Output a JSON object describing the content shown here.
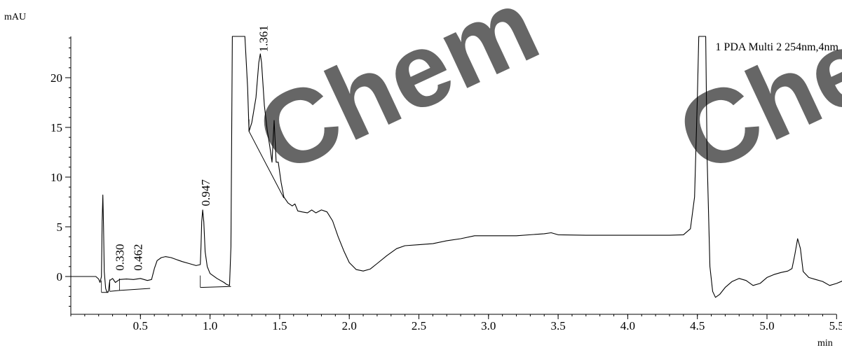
{
  "chart_data": {
    "type": "line",
    "ylabel": "mAU",
    "xlabel": "min",
    "trace_label": "1 PDA Multi 2 254nm,4nm",
    "xlim": [
      0.0,
      5.6
    ],
    "ylim": [
      -3.6,
      24.2
    ],
    "x_ticks": [
      0.5,
      1.0,
      1.5,
      2.0,
      2.5,
      3.0,
      3.5,
      4.0,
      4.5,
      5.0,
      5.5
    ],
    "x_tick_labels": [
      "0.5",
      "1.0",
      "1.5",
      "2.0",
      "2.5",
      "3.0",
      "3.5",
      "4.0",
      "4.5",
      "5.0",
      "5.5"
    ],
    "x_minor_step": 0.1,
    "y_ticks": [
      0,
      5,
      10,
      15,
      20
    ],
    "y_tick_labels": [
      "0",
      "5",
      "10",
      "15",
      "20"
    ],
    "y_minor_step": 1,
    "grid": false,
    "peak_labels": [
      {
        "text": "0.330",
        "x": 0.33,
        "y": 0.3
      },
      {
        "text": "0.462",
        "x": 0.462,
        "y": 0.3
      },
      {
        "text": "0.947",
        "x": 0.947,
        "y": 6.8
      },
      {
        "text": "1.361",
        "x": 1.361,
        "y": 22.3
      }
    ],
    "baselines": [
      [
        [
          0.22,
          -1.6
        ],
        [
          0.27,
          -1.6
        ]
      ],
      [
        [
          0.28,
          -1.5
        ],
        [
          0.35,
          -1.4
        ]
      ],
      [
        [
          0.35,
          -1.4
        ],
        [
          0.57,
          -1.2
        ]
      ],
      [
        [
          0.93,
          -1.1
        ],
        [
          1.15,
          -1.0
        ]
      ],
      [
        [
          1.28,
          14.6
        ],
        [
          1.53,
          7.9
        ]
      ]
    ],
    "series": [
      {
        "points": [
          [
            0.0,
            0.0
          ],
          [
            0.1,
            0.0
          ],
          [
            0.18,
            0.0
          ],
          [
            0.2,
            -0.25
          ],
          [
            0.21,
            -0.6
          ],
          [
            0.22,
            0.0
          ],
          [
            0.225,
            5.5
          ],
          [
            0.23,
            8.2
          ],
          [
            0.235,
            5.0
          ],
          [
            0.24,
            0.5
          ],
          [
            0.25,
            -1.2
          ],
          [
            0.26,
            -1.6
          ],
          [
            0.27,
            -1.5
          ],
          [
            0.28,
            -0.4
          ],
          [
            0.3,
            -0.2
          ],
          [
            0.32,
            -0.6
          ],
          [
            0.35,
            -0.3
          ],
          [
            0.4,
            -0.25
          ],
          [
            0.45,
            -0.3
          ],
          [
            0.5,
            -0.2
          ],
          [
            0.55,
            -0.4
          ],
          [
            0.58,
            -0.3
          ],
          [
            0.6,
            0.8
          ],
          [
            0.62,
            1.6
          ],
          [
            0.65,
            1.9
          ],
          [
            0.68,
            2.0
          ],
          [
            0.72,
            1.9
          ],
          [
            0.76,
            1.7
          ],
          [
            0.8,
            1.5
          ],
          [
            0.85,
            1.3
          ],
          [
            0.9,
            1.1
          ],
          [
            0.93,
            1.2
          ],
          [
            0.935,
            3.0
          ],
          [
            0.94,
            5.5
          ],
          [
            0.947,
            6.7
          ],
          [
            0.955,
            5.5
          ],
          [
            0.965,
            2.5
          ],
          [
            0.98,
            1.0
          ],
          [
            1.0,
            0.3
          ],
          [
            1.05,
            -0.2
          ],
          [
            1.1,
            -0.6
          ],
          [
            1.12,
            -0.8
          ],
          [
            1.14,
            -0.9
          ],
          [
            1.15,
            3.0
          ],
          [
            1.16,
            26.0
          ],
          [
            1.25,
            26.0
          ],
          [
            1.27,
            19.0
          ],
          [
            1.28,
            14.6
          ],
          [
            1.3,
            15.5
          ],
          [
            1.33,
            18.0
          ],
          [
            1.35,
            21.5
          ],
          [
            1.361,
            22.4
          ],
          [
            1.37,
            21.5
          ],
          [
            1.39,
            17.2
          ],
          [
            1.41,
            14.8
          ],
          [
            1.43,
            13.0
          ],
          [
            1.445,
            11.5
          ],
          [
            1.46,
            15.7
          ],
          [
            1.475,
            11.5
          ],
          [
            1.49,
            11.5
          ],
          [
            1.51,
            9.5
          ],
          [
            1.53,
            8.0
          ],
          [
            1.56,
            7.4
          ],
          [
            1.59,
            7.1
          ],
          [
            1.61,
            7.3
          ],
          [
            1.63,
            6.6
          ],
          [
            1.66,
            6.5
          ],
          [
            1.7,
            6.4
          ],
          [
            1.73,
            6.7
          ],
          [
            1.76,
            6.4
          ],
          [
            1.8,
            6.7
          ],
          [
            1.84,
            6.5
          ],
          [
            1.88,
            5.6
          ],
          [
            1.92,
            4.0
          ],
          [
            1.96,
            2.6
          ],
          [
            2.0,
            1.4
          ],
          [
            2.05,
            0.7
          ],
          [
            2.1,
            0.55
          ],
          [
            2.15,
            0.75
          ],
          [
            2.2,
            1.3
          ],
          [
            2.27,
            2.1
          ],
          [
            2.34,
            2.8
          ],
          [
            2.4,
            3.1
          ],
          [
            2.5,
            3.2
          ],
          [
            2.6,
            3.3
          ],
          [
            2.7,
            3.6
          ],
          [
            2.8,
            3.8
          ],
          [
            2.9,
            4.1
          ],
          [
            3.0,
            4.1
          ],
          [
            3.2,
            4.1
          ],
          [
            3.4,
            4.3
          ],
          [
            3.45,
            4.4
          ],
          [
            3.5,
            4.2
          ],
          [
            3.7,
            4.15
          ],
          [
            3.9,
            4.15
          ],
          [
            4.1,
            4.15
          ],
          [
            4.3,
            4.15
          ],
          [
            4.4,
            4.2
          ],
          [
            4.45,
            4.8
          ],
          [
            4.48,
            8.0
          ],
          [
            4.5,
            18.0
          ],
          [
            4.51,
            26.0
          ],
          [
            4.56,
            26.0
          ],
          [
            4.57,
            12.0
          ],
          [
            4.59,
            1.0
          ],
          [
            4.61,
            -1.5
          ],
          [
            4.63,
            -2.1
          ],
          [
            4.66,
            -1.8
          ],
          [
            4.7,
            -1.1
          ],
          [
            4.75,
            -0.5
          ],
          [
            4.8,
            -0.2
          ],
          [
            4.85,
            -0.4
          ],
          [
            4.9,
            -0.9
          ],
          [
            4.95,
            -0.7
          ],
          [
            5.0,
            -0.1
          ],
          [
            5.05,
            0.2
          ],
          [
            5.1,
            0.4
          ],
          [
            5.15,
            0.55
          ],
          [
            5.18,
            0.8
          ],
          [
            5.2,
            2.2
          ],
          [
            5.22,
            3.8
          ],
          [
            5.24,
            2.8
          ],
          [
            5.26,
            0.5
          ],
          [
            5.3,
            -0.1
          ],
          [
            5.35,
            -0.3
          ],
          [
            5.4,
            -0.5
          ],
          [
            5.45,
            -0.9
          ],
          [
            5.5,
            -0.7
          ],
          [
            5.55,
            -0.4
          ],
          [
            5.6,
            -0.5
          ]
        ]
      }
    ]
  }
}
